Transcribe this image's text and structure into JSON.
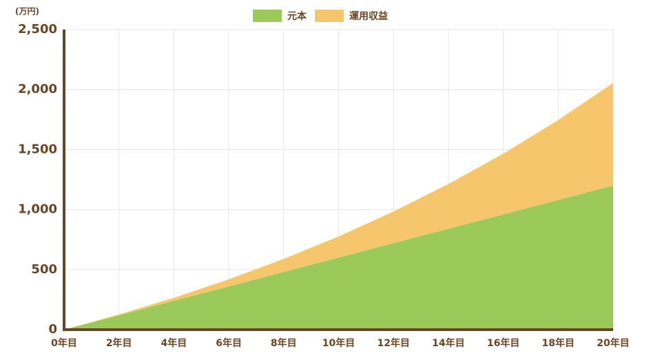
{
  "chart_data": {
    "type": "stacked_area",
    "unit_label": "(万円)",
    "categories": [
      "0年目",
      "2年目",
      "4年目",
      "6年目",
      "8年目",
      "10年目",
      "12年目",
      "14年目",
      "16年目",
      "18年目",
      "20年目"
    ],
    "series": [
      {
        "name": "元本",
        "color": "#9bc95a",
        "values": [
          0,
          120,
          240,
          360,
          480,
          600,
          720,
          840,
          960,
          1080,
          1200
        ]
      },
      {
        "name": "運用収益",
        "color": "#f5c66b",
        "values": [
          0,
          6,
          25,
          59,
          109,
          176,
          264,
          373,
          506,
          666,
          855
        ]
      }
    ],
    "ylim": [
      0,
      2500
    ],
    "yticks": [
      0,
      {
        "value": 500,
        "label": "500"
      },
      {
        "value": 1000,
        "label": "1,000"
      },
      {
        "value": 1500,
        "label": "1,500"
      },
      {
        "value": 2000,
        "label": "2,000"
      },
      {
        "value": 2500,
        "label": "2,500"
      }
    ],
    "grid": true,
    "legend": "top"
  }
}
